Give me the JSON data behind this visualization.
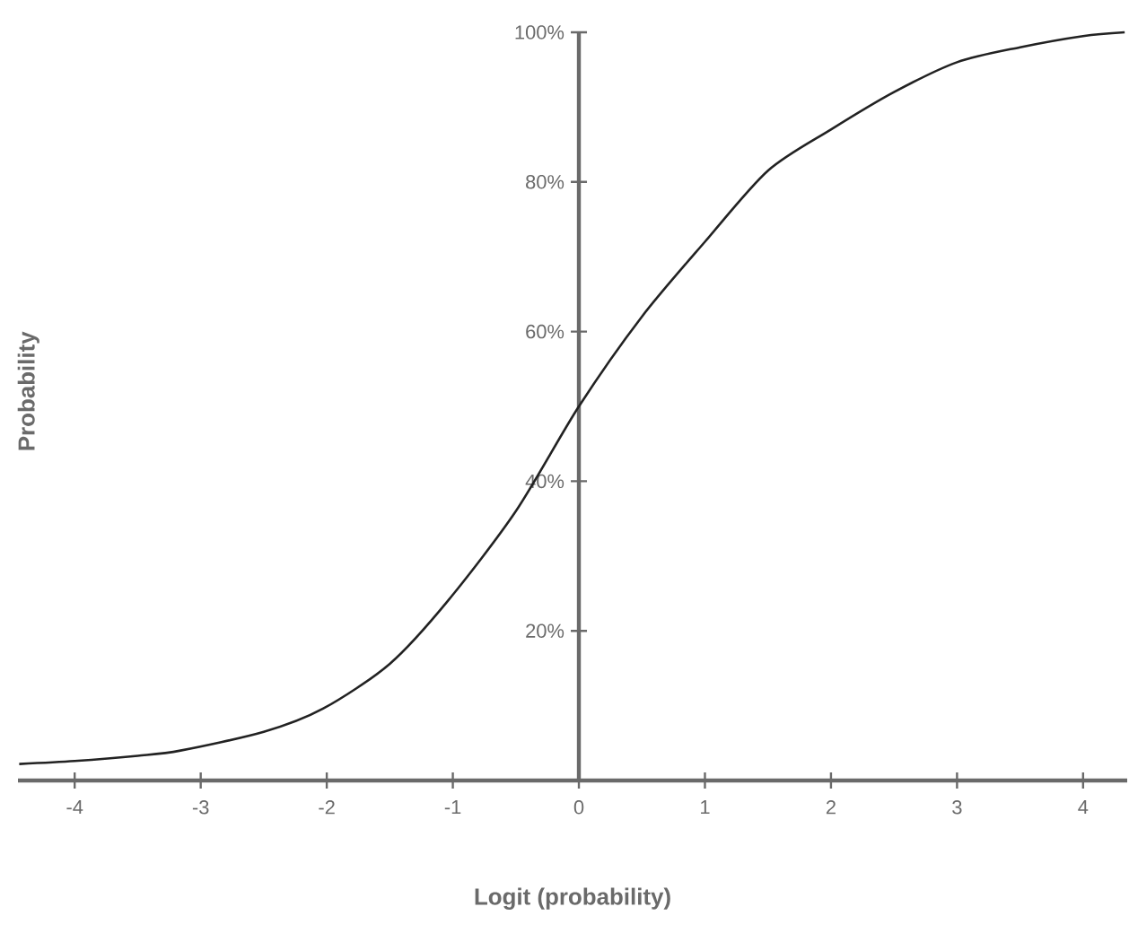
{
  "chart_data": {
    "type": "line",
    "xlabel": "Logit (probability)",
    "ylabel": "Probability",
    "x": [
      -4.44,
      -4,
      -3.5,
      -3.16,
      -2.5,
      -2.03,
      -1.5,
      -1.04,
      -0.5,
      0,
      0.5,
      1,
      1.5,
      2,
      2.5,
      3,
      3.5,
      4,
      4.33
    ],
    "series": [
      {
        "color": "#222222",
        "values": [
          2.2,
          2.6,
          3.3,
          4,
          6.5,
          9.6,
          15.6,
          24,
          36,
          50,
          62,
          72,
          81.5,
          87,
          92,
          96,
          98,
          99.5,
          100
        ]
      }
    ],
    "xlim": [
      -4.45,
      4.35
    ],
    "ylim": [
      0,
      100
    ],
    "xticks": [
      -4,
      -3,
      -2,
      -1,
      0,
      1,
      2,
      3,
      4
    ],
    "yticks": [
      {
        "value": 20,
        "label": "20%"
      },
      {
        "value": 40,
        "label": "40%"
      },
      {
        "value": 60,
        "label": "60%"
      },
      {
        "value": 80,
        "label": "80%"
      },
      {
        "value": 100,
        "label": "100%"
      }
    ],
    "grid": false,
    "marker": "none",
    "line_style": "solid"
  }
}
